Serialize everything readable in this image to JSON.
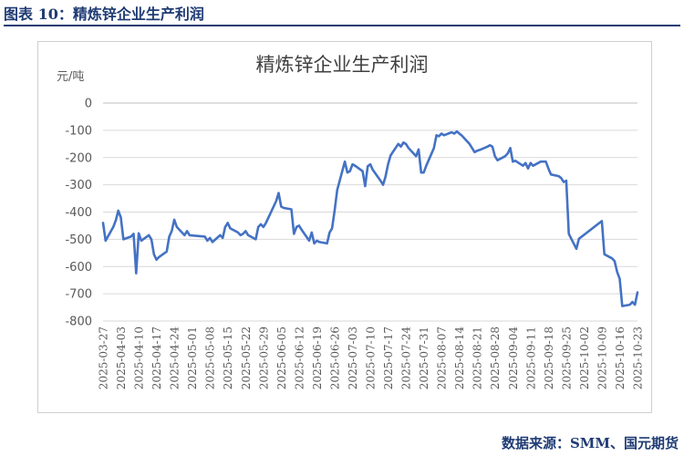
{
  "figure": {
    "label": "图表 10：精炼锌企业生产利润",
    "source": "数据来源：SMM、国元期货"
  },
  "colors": {
    "line": "#4472c4",
    "grid": "#d9d9d9",
    "header": "#1f3b73"
  },
  "chart_data": {
    "type": "line",
    "title": "精炼锌企业生产利润",
    "ylabel": "元/吨",
    "xlabel": "",
    "ylim": [
      -800,
      0
    ],
    "yticks": [
      0,
      -100,
      -200,
      -300,
      -400,
      -500,
      -600,
      -700,
      -800
    ],
    "x_ticks": [
      "2025-03-27",
      "2025-04-03",
      "2025-04-10",
      "2025-04-17",
      "2025-04-24",
      "2025-05-01",
      "2025-05-08",
      "2025-05-15",
      "2025-05-22",
      "2025-05-29",
      "2025-06-05",
      "2025-06-12",
      "2025-06-19",
      "2025-06-26",
      "2025-07-03",
      "2025-07-10",
      "2025-07-17",
      "2025-07-24",
      "2025-07-31",
      "2025-08-07",
      "2025-08-14",
      "2025-08-21",
      "2025-08-28",
      "2025-09-04",
      "2025-09-11",
      "2025-09-18",
      "2025-09-25",
      "2025-10-02",
      "2025-10-09",
      "2025-10-16",
      "2025-10-23"
    ],
    "grid": "horizontal",
    "legend": "none",
    "series": [
      {
        "points": [
          [
            "2025-03-27",
            -440
          ],
          [
            "2025-03-28",
            -505
          ],
          [
            "2025-03-31",
            -455
          ],
          [
            "2025-04-01",
            -430
          ],
          [
            "2025-04-02",
            -395
          ],
          [
            "2025-04-03",
            -420
          ],
          [
            "2025-04-04",
            -500
          ],
          [
            "2025-04-07",
            -490
          ],
          [
            "2025-04-08",
            -480
          ],
          [
            "2025-04-09",
            -625
          ],
          [
            "2025-04-10",
            -478
          ],
          [
            "2025-04-11",
            -505
          ],
          [
            "2025-04-14",
            -485
          ],
          [
            "2025-04-15",
            -500
          ],
          [
            "2025-04-16",
            -555
          ],
          [
            "2025-04-17",
            -575
          ],
          [
            "2025-04-18",
            -565
          ],
          [
            "2025-04-21",
            -545
          ],
          [
            "2025-04-22",
            -490
          ],
          [
            "2025-04-23",
            -470
          ],
          [
            "2025-04-24",
            -428
          ],
          [
            "2025-04-25",
            -455
          ],
          [
            "2025-04-28",
            -485
          ],
          [
            "2025-04-29",
            -470
          ],
          [
            "2025-04-30",
            -485
          ],
          [
            "2025-05-06",
            -490
          ],
          [
            "2025-05-07",
            -505
          ],
          [
            "2025-05-08",
            -495
          ],
          [
            "2025-05-09",
            -510
          ],
          [
            "2025-05-12",
            -485
          ],
          [
            "2025-05-13",
            -495
          ],
          [
            "2025-05-14",
            -455
          ],
          [
            "2025-05-15",
            -440
          ],
          [
            "2025-05-16",
            -460
          ],
          [
            "2025-05-19",
            -475
          ],
          [
            "2025-05-20",
            -485
          ],
          [
            "2025-05-21",
            -480
          ],
          [
            "2025-05-22",
            -470
          ],
          [
            "2025-05-23",
            -485
          ],
          [
            "2025-05-26",
            -500
          ],
          [
            "2025-05-27",
            -455
          ],
          [
            "2025-05-28",
            -445
          ],
          [
            "2025-05-29",
            -455
          ],
          [
            "2025-05-30",
            -440
          ],
          [
            "2025-06-03",
            -360
          ],
          [
            "2025-06-04",
            -330
          ],
          [
            "2025-06-05",
            -380
          ],
          [
            "2025-06-06",
            -385
          ],
          [
            "2025-06-09",
            -390
          ],
          [
            "2025-06-10",
            -480
          ],
          [
            "2025-06-11",
            -455
          ],
          [
            "2025-06-12",
            -450
          ],
          [
            "2025-06-13",
            -465
          ],
          [
            "2025-06-16",
            -505
          ],
          [
            "2025-06-17",
            -475
          ],
          [
            "2025-06-18",
            -515
          ],
          [
            "2025-06-19",
            -505
          ],
          [
            "2025-06-20",
            -510
          ],
          [
            "2025-06-23",
            -515
          ],
          [
            "2025-06-24",
            -475
          ],
          [
            "2025-06-25",
            -460
          ],
          [
            "2025-06-26",
            -395
          ],
          [
            "2025-06-27",
            -320
          ],
          [
            "2025-06-30",
            -215
          ],
          [
            "2025-07-01",
            -255
          ],
          [
            "2025-07-02",
            -250
          ],
          [
            "2025-07-03",
            -225
          ],
          [
            "2025-07-04",
            -230
          ],
          [
            "2025-07-07",
            -250
          ],
          [
            "2025-07-08",
            -305
          ],
          [
            "2025-07-09",
            -232
          ],
          [
            "2025-07-10",
            -225
          ],
          [
            "2025-07-11",
            -245
          ],
          [
            "2025-07-14",
            -285
          ],
          [
            "2025-07-15",
            -300
          ],
          [
            "2025-07-16",
            -270
          ],
          [
            "2025-07-17",
            -225
          ],
          [
            "2025-07-18",
            -192
          ],
          [
            "2025-07-21",
            -150
          ],
          [
            "2025-07-22",
            -160
          ],
          [
            "2025-07-23",
            -145
          ],
          [
            "2025-07-24",
            -150
          ],
          [
            "2025-07-25",
            -165
          ],
          [
            "2025-07-28",
            -195
          ],
          [
            "2025-07-29",
            -170
          ],
          [
            "2025-07-30",
            -255
          ],
          [
            "2025-07-31",
            -255
          ],
          [
            "2025-08-01",
            -230
          ],
          [
            "2025-08-04",
            -165
          ],
          [
            "2025-08-05",
            -118
          ],
          [
            "2025-08-06",
            -122
          ],
          [
            "2025-08-07",
            -112
          ],
          [
            "2025-08-08",
            -118
          ],
          [
            "2025-08-11",
            -107
          ],
          [
            "2025-08-12",
            -112
          ],
          [
            "2025-08-13",
            -104
          ],
          [
            "2025-08-14",
            -112
          ],
          [
            "2025-08-15",
            -120
          ],
          [
            "2025-08-18",
            -150
          ],
          [
            "2025-08-19",
            -165
          ],
          [
            "2025-08-20",
            -180
          ],
          [
            "2025-08-21",
            -175
          ],
          [
            "2025-08-22",
            -172
          ],
          [
            "2025-08-25",
            -160
          ],
          [
            "2025-08-26",
            -155
          ],
          [
            "2025-08-27",
            -160
          ],
          [
            "2025-08-28",
            -195
          ],
          [
            "2025-08-29",
            -210
          ],
          [
            "2025-09-01",
            -195
          ],
          [
            "2025-09-02",
            -185
          ],
          [
            "2025-09-03",
            -165
          ],
          [
            "2025-09-04",
            -215
          ],
          [
            "2025-09-05",
            -212
          ],
          [
            "2025-09-08",
            -230
          ],
          [
            "2025-09-09",
            -220
          ],
          [
            "2025-09-10",
            -240
          ],
          [
            "2025-09-11",
            -220
          ],
          [
            "2025-09-12",
            -230
          ],
          [
            "2025-09-15",
            -215
          ],
          [
            "2025-09-16",
            -215
          ],
          [
            "2025-09-17",
            -215
          ],
          [
            "2025-09-18",
            -240
          ],
          [
            "2025-09-19",
            -262
          ],
          [
            "2025-09-22",
            -268
          ],
          [
            "2025-09-23",
            -275
          ],
          [
            "2025-09-24",
            -290
          ],
          [
            "2025-09-25",
            -285
          ],
          [
            "2025-09-26",
            -480
          ],
          [
            "2025-09-29",
            -535
          ],
          [
            "2025-09-30",
            -498
          ],
          [
            "2025-10-09",
            -433
          ],
          [
            "2025-10-10",
            -555
          ],
          [
            "2025-10-13",
            -570
          ],
          [
            "2025-10-14",
            -580
          ],
          [
            "2025-10-15",
            -620
          ],
          [
            "2025-10-16",
            -645
          ],
          [
            "2025-10-17",
            -745
          ],
          [
            "2025-10-20",
            -740
          ],
          [
            "2025-10-21",
            -730
          ],
          [
            "2025-10-22",
            -740
          ],
          [
            "2025-10-23",
            -695
          ]
        ]
      }
    ]
  }
}
